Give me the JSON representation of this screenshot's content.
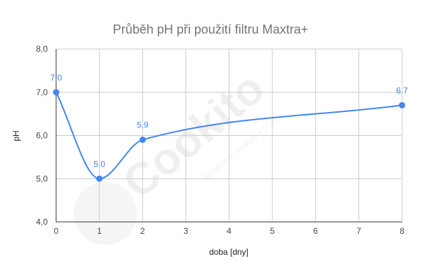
{
  "chart_data": {
    "type": "line",
    "title": "Průběh pH při použití filtru Maxtra+",
    "xlabel": "doba [dny]",
    "ylabel": "pH",
    "x": [
      0,
      1,
      2,
      8
    ],
    "series": [
      {
        "values": [
          7.0,
          5.0,
          5.9,
          6.7
        ],
        "labels": [
          "7.0",
          "5.0",
          "5.9",
          "6.7"
        ]
      }
    ],
    "xlim": [
      0,
      8
    ],
    "ylim": [
      4.0,
      8.0
    ],
    "xticks": [
      "0",
      "1",
      "2",
      "3",
      "4",
      "5",
      "6",
      "7",
      "8"
    ],
    "yticks": [
      "4,0",
      "5,0",
      "6,0",
      "7,0",
      "8,0"
    ],
    "grid": true,
    "smooth": true,
    "color": "#4285f4"
  },
  "watermark": {
    "brand": "Cookito",
    "tagline": "Spolehlivé recepty s chutí",
    "color": "#eeeeee"
  }
}
